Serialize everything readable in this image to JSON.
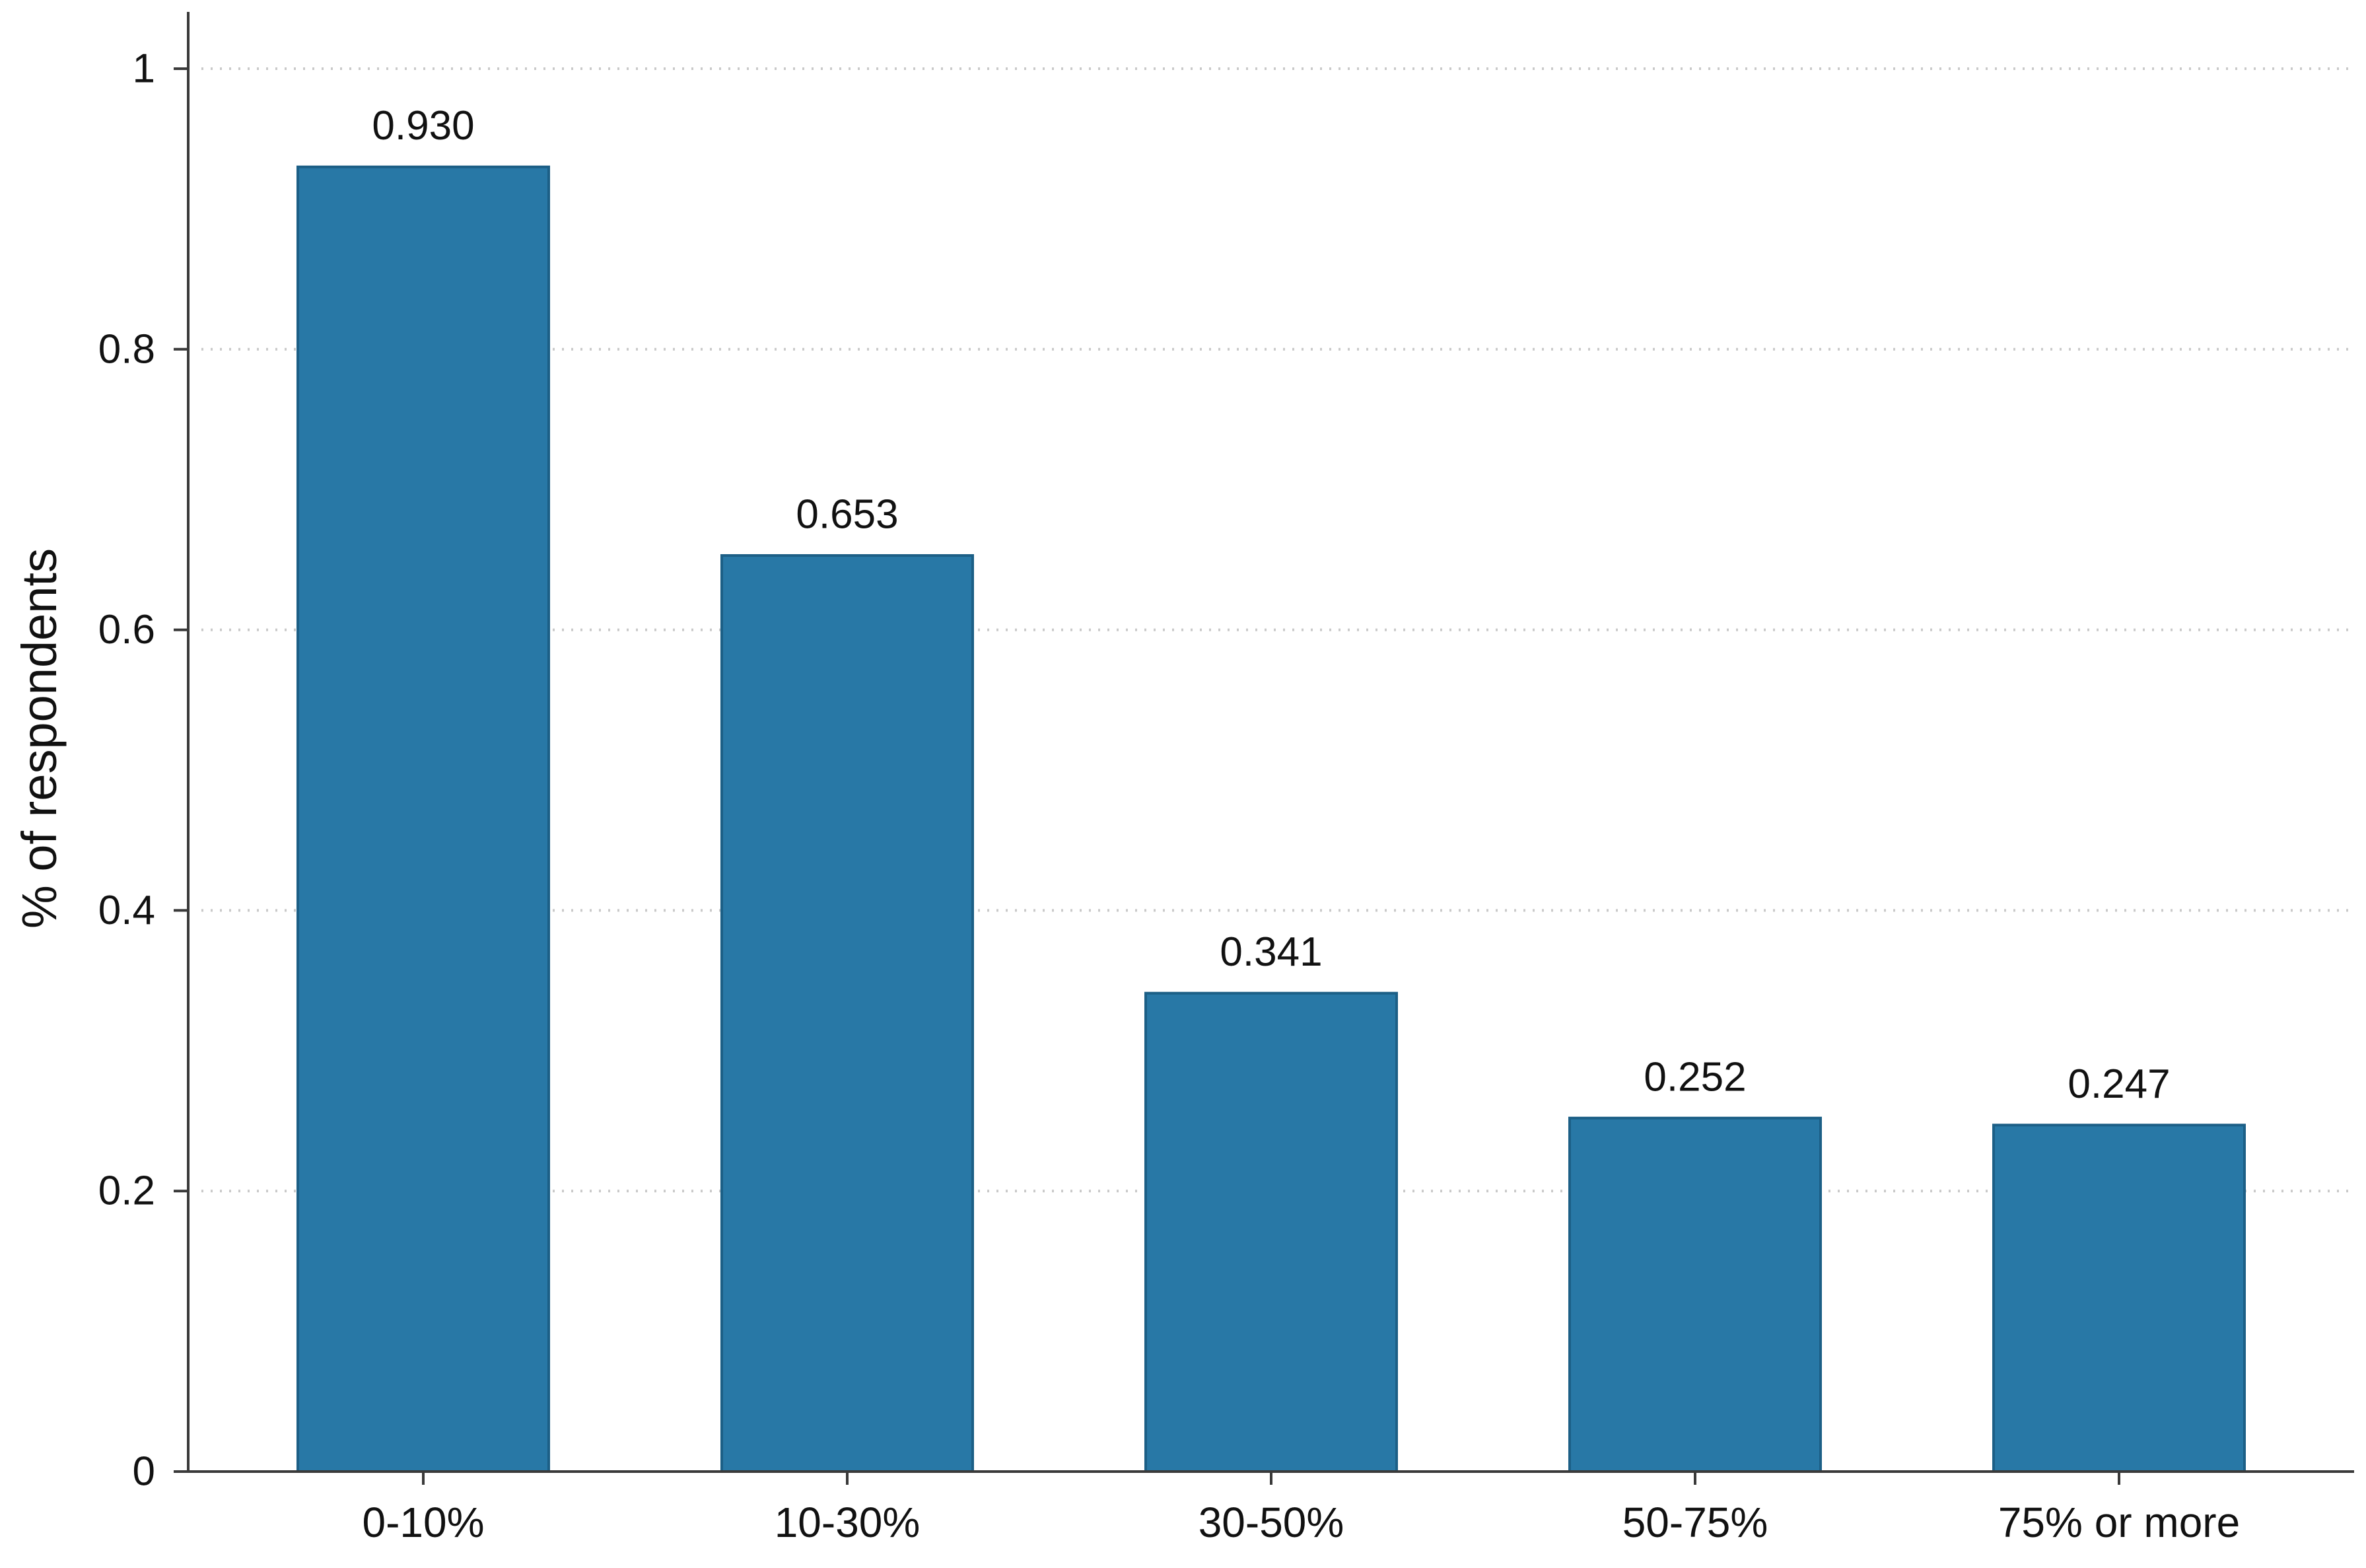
{
  "chart_data": {
    "type": "bar",
    "categories": [
      "0-10%",
      "10-30%",
      "30-50%",
      "50-75%",
      "75% or more"
    ],
    "values": [
      0.93,
      0.653,
      0.341,
      0.252,
      0.247
    ],
    "data_labels": [
      "0.930",
      "0.653",
      "0.341",
      "0.252",
      "0.247"
    ],
    "title": "",
    "xlabel": "",
    "ylabel": "% of respondents",
    "ylim": [
      0,
      1
    ],
    "yticks": [
      0,
      0.2,
      0.4,
      0.6,
      0.8,
      1
    ],
    "ytick_labels": [
      "0",
      "0.2",
      "0.4",
      "0.6",
      "0.8",
      "1"
    ],
    "grid": "horizontal dotted",
    "legend": "none",
    "colors": {
      "bar_fill": "#2878a6",
      "bar_edge": "#1c5f86",
      "grid": "#c9c9c9",
      "axis": "#3a3a3a"
    }
  }
}
